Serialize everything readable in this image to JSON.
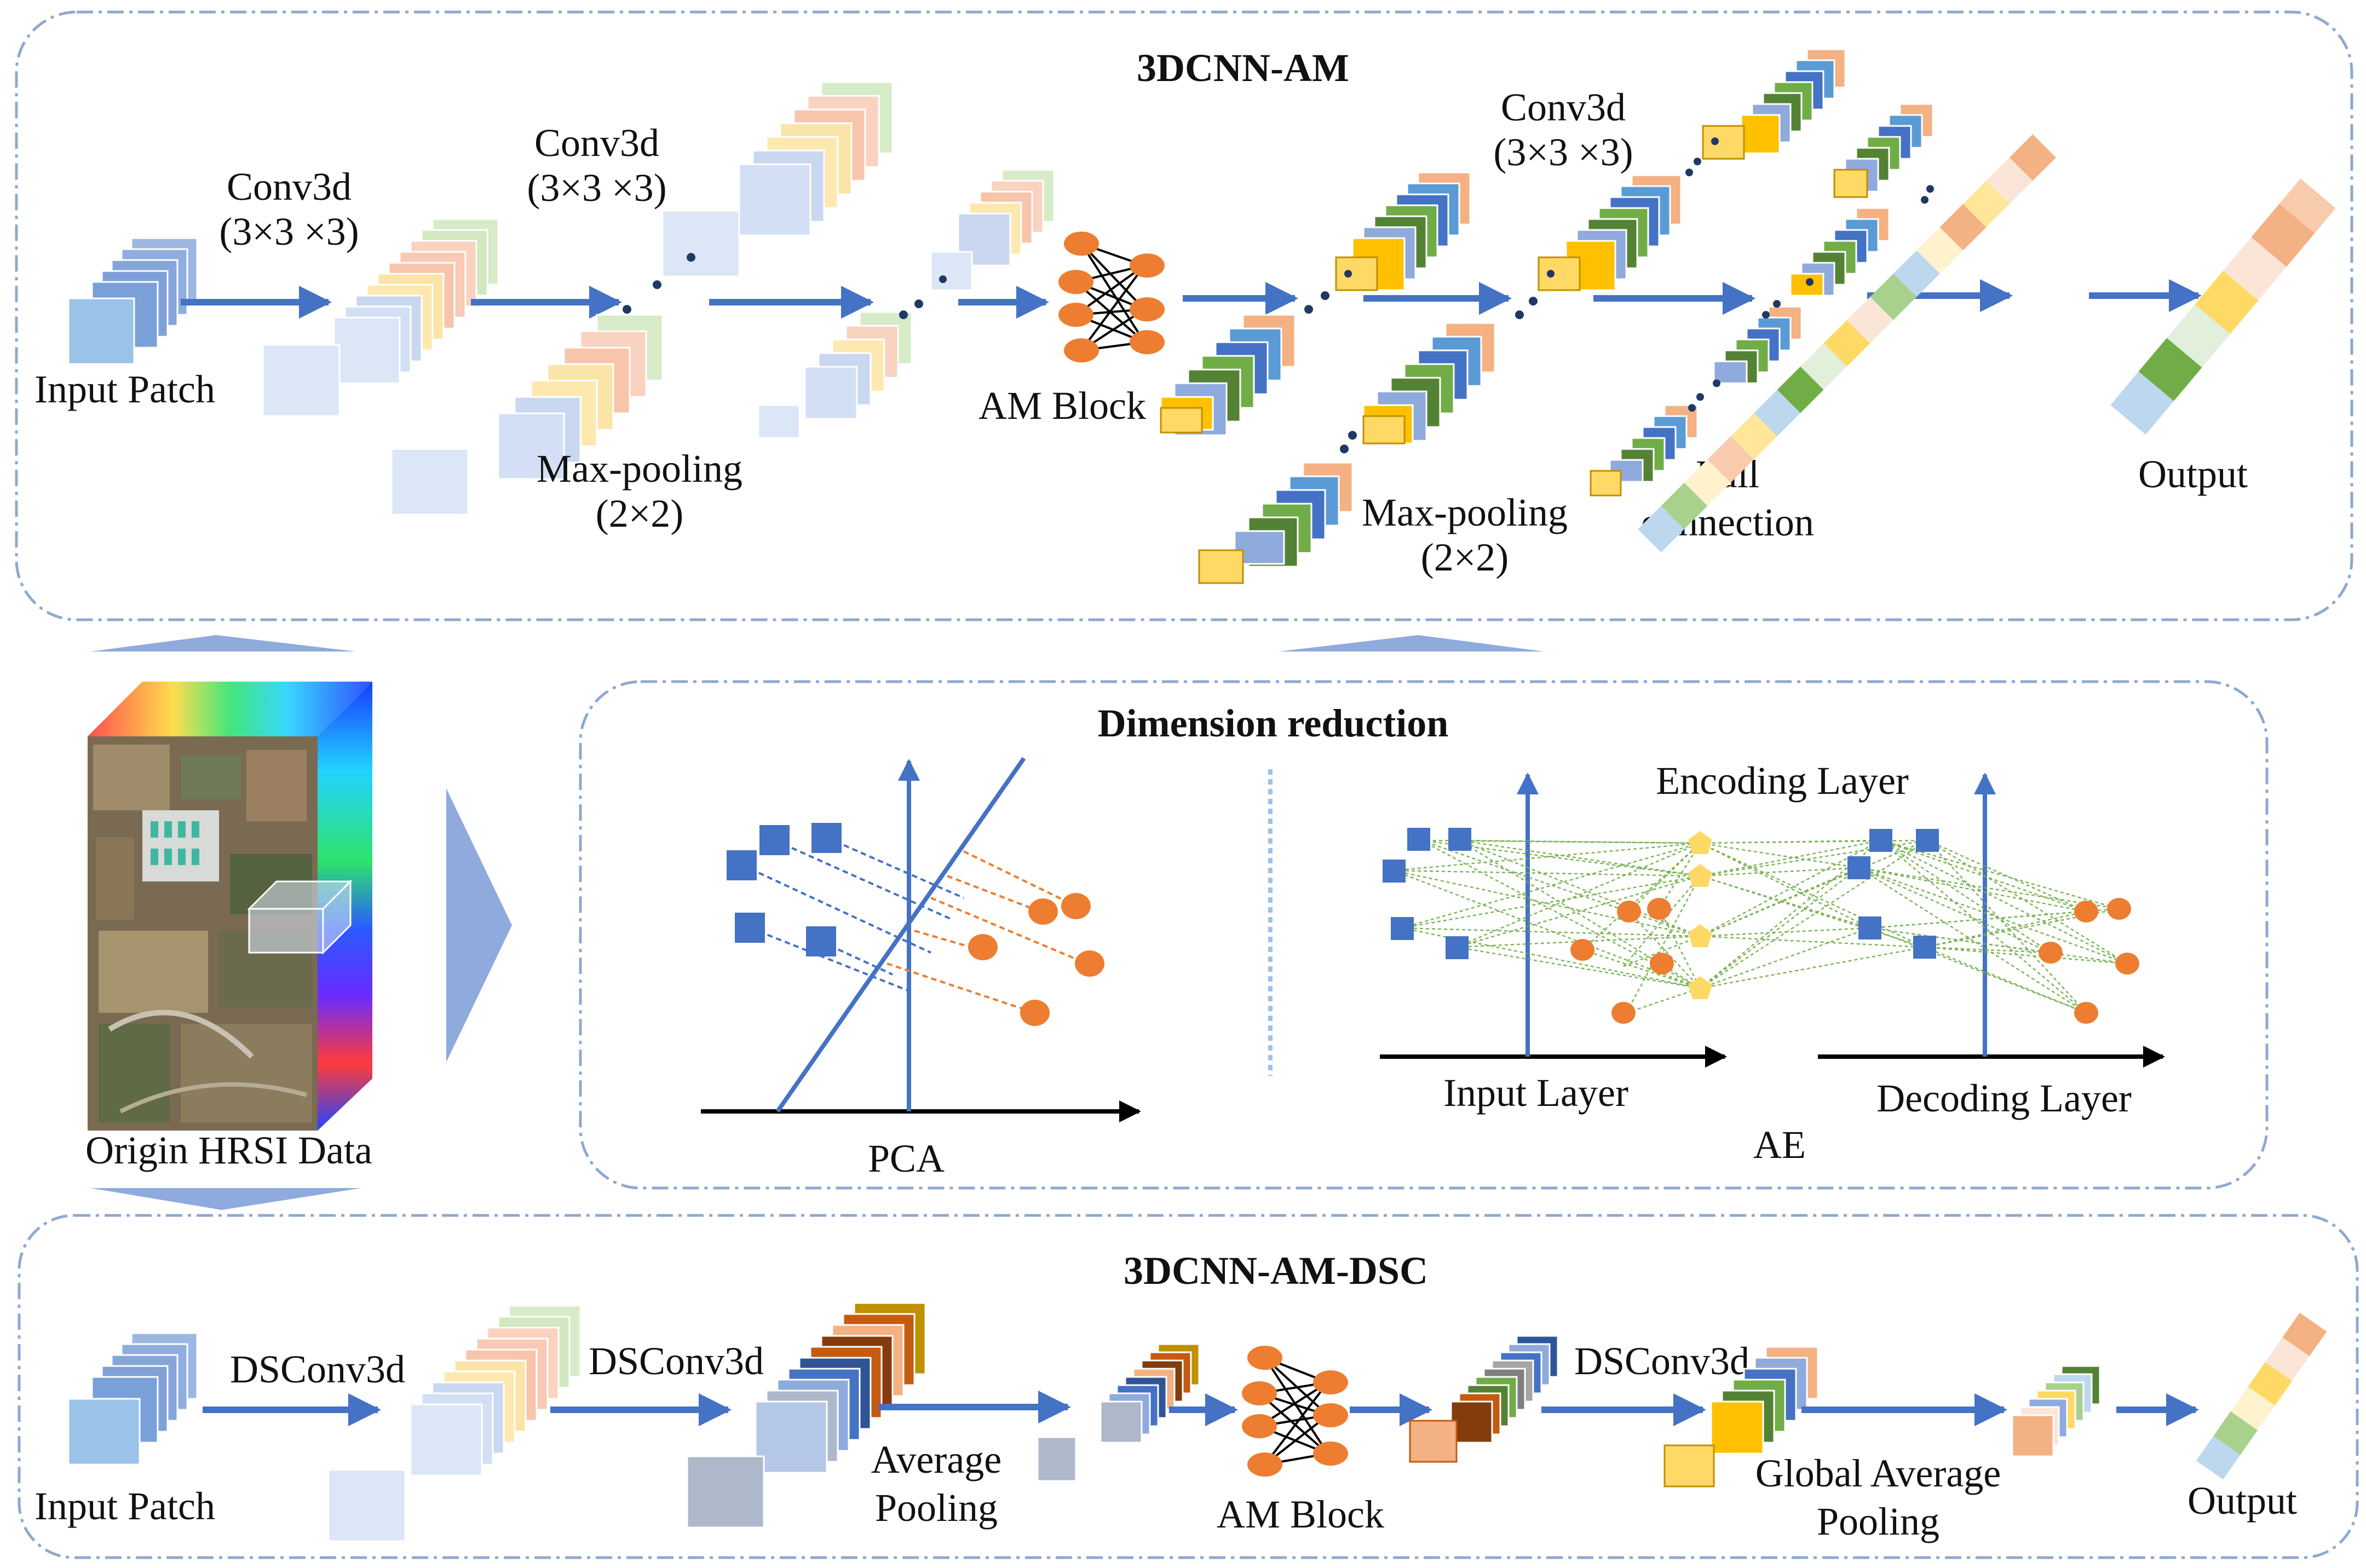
{
  "panels": {
    "top": {
      "title": "3DCNN-AM",
      "input_label": "Input Patch",
      "conv1_line1": "Conv3d",
      "conv1_line2": "(3×3 ×3)",
      "conv2_line1": "Conv3d",
      "conv2_line2": "(3×3 ×3)",
      "pool1_line1": "Max-pooling",
      "pool1_line2": "(2×2)",
      "am_block": "AM Block",
      "conv3_line1": "Conv3d",
      "conv3_line2": "(3×3 ×3)",
      "pool2_line1": "Max-pooling",
      "pool2_line2": "(2×2)",
      "fc_line1": "Full",
      "fc_line2": "connection",
      "output_label": "Output"
    },
    "middle": {
      "title": "Dimension reduction",
      "pca_label": "PCA",
      "ae_label": "AE",
      "encoding_layer": "Encoding Layer",
      "input_layer": "Input Layer",
      "decoding_layer": "Decoding Layer"
    },
    "left": {
      "data_label": "Origin HRSI Data"
    },
    "bottom": {
      "title": "3DCNN-AM-DSC",
      "input_label": "Input Patch",
      "dsconv1": "DSConv3d",
      "dsconv2": "DSConv3d",
      "avgpool_line1": "Average",
      "avgpool_line2": "Pooling",
      "am_block": "AM Block",
      "dsconv3": "DSConv3d",
      "gap_line1": "Global Average",
      "gap_line2": "Pooling",
      "output_label": "Output"
    }
  },
  "colors": {
    "arrow": "#4472c4",
    "big_arrow": "#8faadc",
    "node": "#ed7d31",
    "square": "#4472c4",
    "pentagon": "#ffd966",
    "net_line": "#70ad47",
    "panel_border": "#8ea9cf"
  }
}
